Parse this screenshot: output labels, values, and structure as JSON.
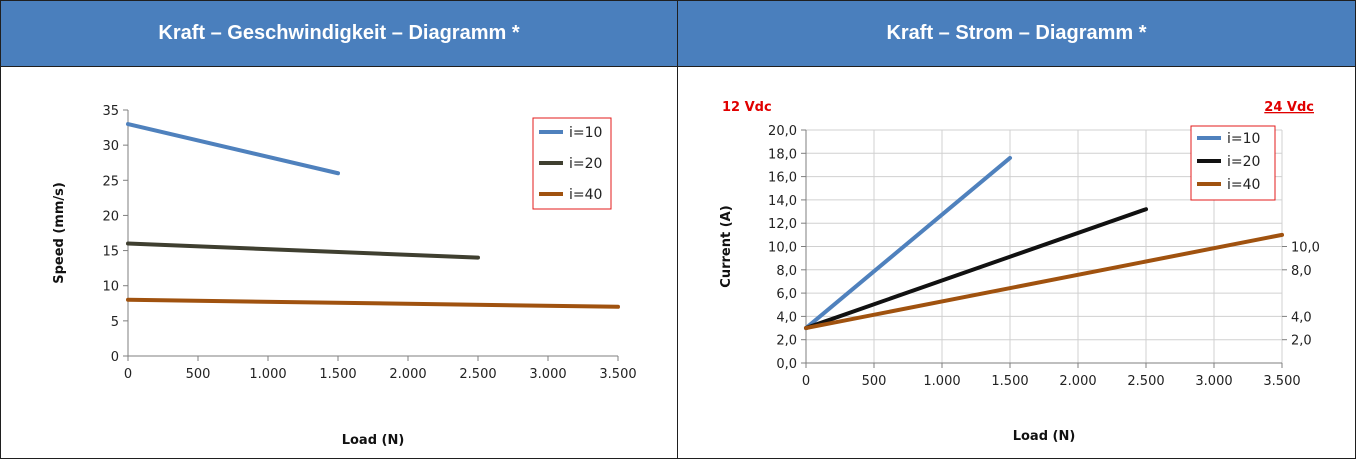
{
  "panels": {
    "left": {
      "title": "Kraft – Geschwindigkeit – Diagramm *"
    },
    "right": {
      "title": "Kraft – Strom – Diagramm *"
    }
  },
  "chart_data": [
    {
      "type": "line",
      "xlabel": "Load (N)",
      "ylabel": "Speed (mm/s)",
      "xlim": [
        0,
        3500
      ],
      "ylim": [
        0,
        35
      ],
      "xticks": [
        "0",
        "500",
        "1.000",
        "1.500",
        "2.000",
        "2.500",
        "3.000",
        "3.500"
      ],
      "yticks": [
        "0",
        "5",
        "10",
        "15",
        "20",
        "25",
        "30",
        "35"
      ],
      "grid": false,
      "legend": "top-right",
      "series": [
        {
          "name": "i=10",
          "color": "#4f81bd",
          "x": [
            0,
            1500
          ],
          "y": [
            33,
            26
          ]
        },
        {
          "name": "i=20",
          "color": "#3f3f30",
          "x": [
            0,
            2500
          ],
          "y": [
            16,
            14
          ]
        },
        {
          "name": "i=40",
          "color": "#a0520f",
          "x": [
            0,
            3500
          ],
          "y": [
            8,
            7
          ]
        }
      ]
    },
    {
      "type": "line",
      "xlabel": "Load (N)",
      "ylabel": "Current (A)",
      "left_axis_label": "12 Vdc",
      "right_axis_label": "24 Vdc",
      "xlim": [
        0,
        3500
      ],
      "ylim": [
        0,
        20
      ],
      "xticks": [
        "0",
        "500",
        "1.000",
        "1.500",
        "2.000",
        "2.500",
        "3.000",
        "3.500"
      ],
      "yticks": [
        "0,0",
        "2,0",
        "4,0",
        "6,0",
        "8,0",
        "10,0",
        "12,0",
        "14,0",
        "16,0",
        "18,0",
        "20,0"
      ],
      "y2ticks": [
        "2,0",
        "4,0",
        "8,0",
        "10,0"
      ],
      "y2values": [
        2,
        4,
        8,
        10
      ],
      "grid": true,
      "legend": "top-right",
      "series": [
        {
          "name": "i=10",
          "color": "#4f81bd",
          "x": [
            0,
            1500
          ],
          "y": [
            3.0,
            17.6
          ]
        },
        {
          "name": "i=20",
          "color": "#111111",
          "x": [
            0,
            2500
          ],
          "y": [
            3.0,
            13.2
          ]
        },
        {
          "name": "i=40",
          "color": "#a0520f",
          "x": [
            0,
            3500
          ],
          "y": [
            3.0,
            11.0
          ]
        }
      ]
    }
  ]
}
